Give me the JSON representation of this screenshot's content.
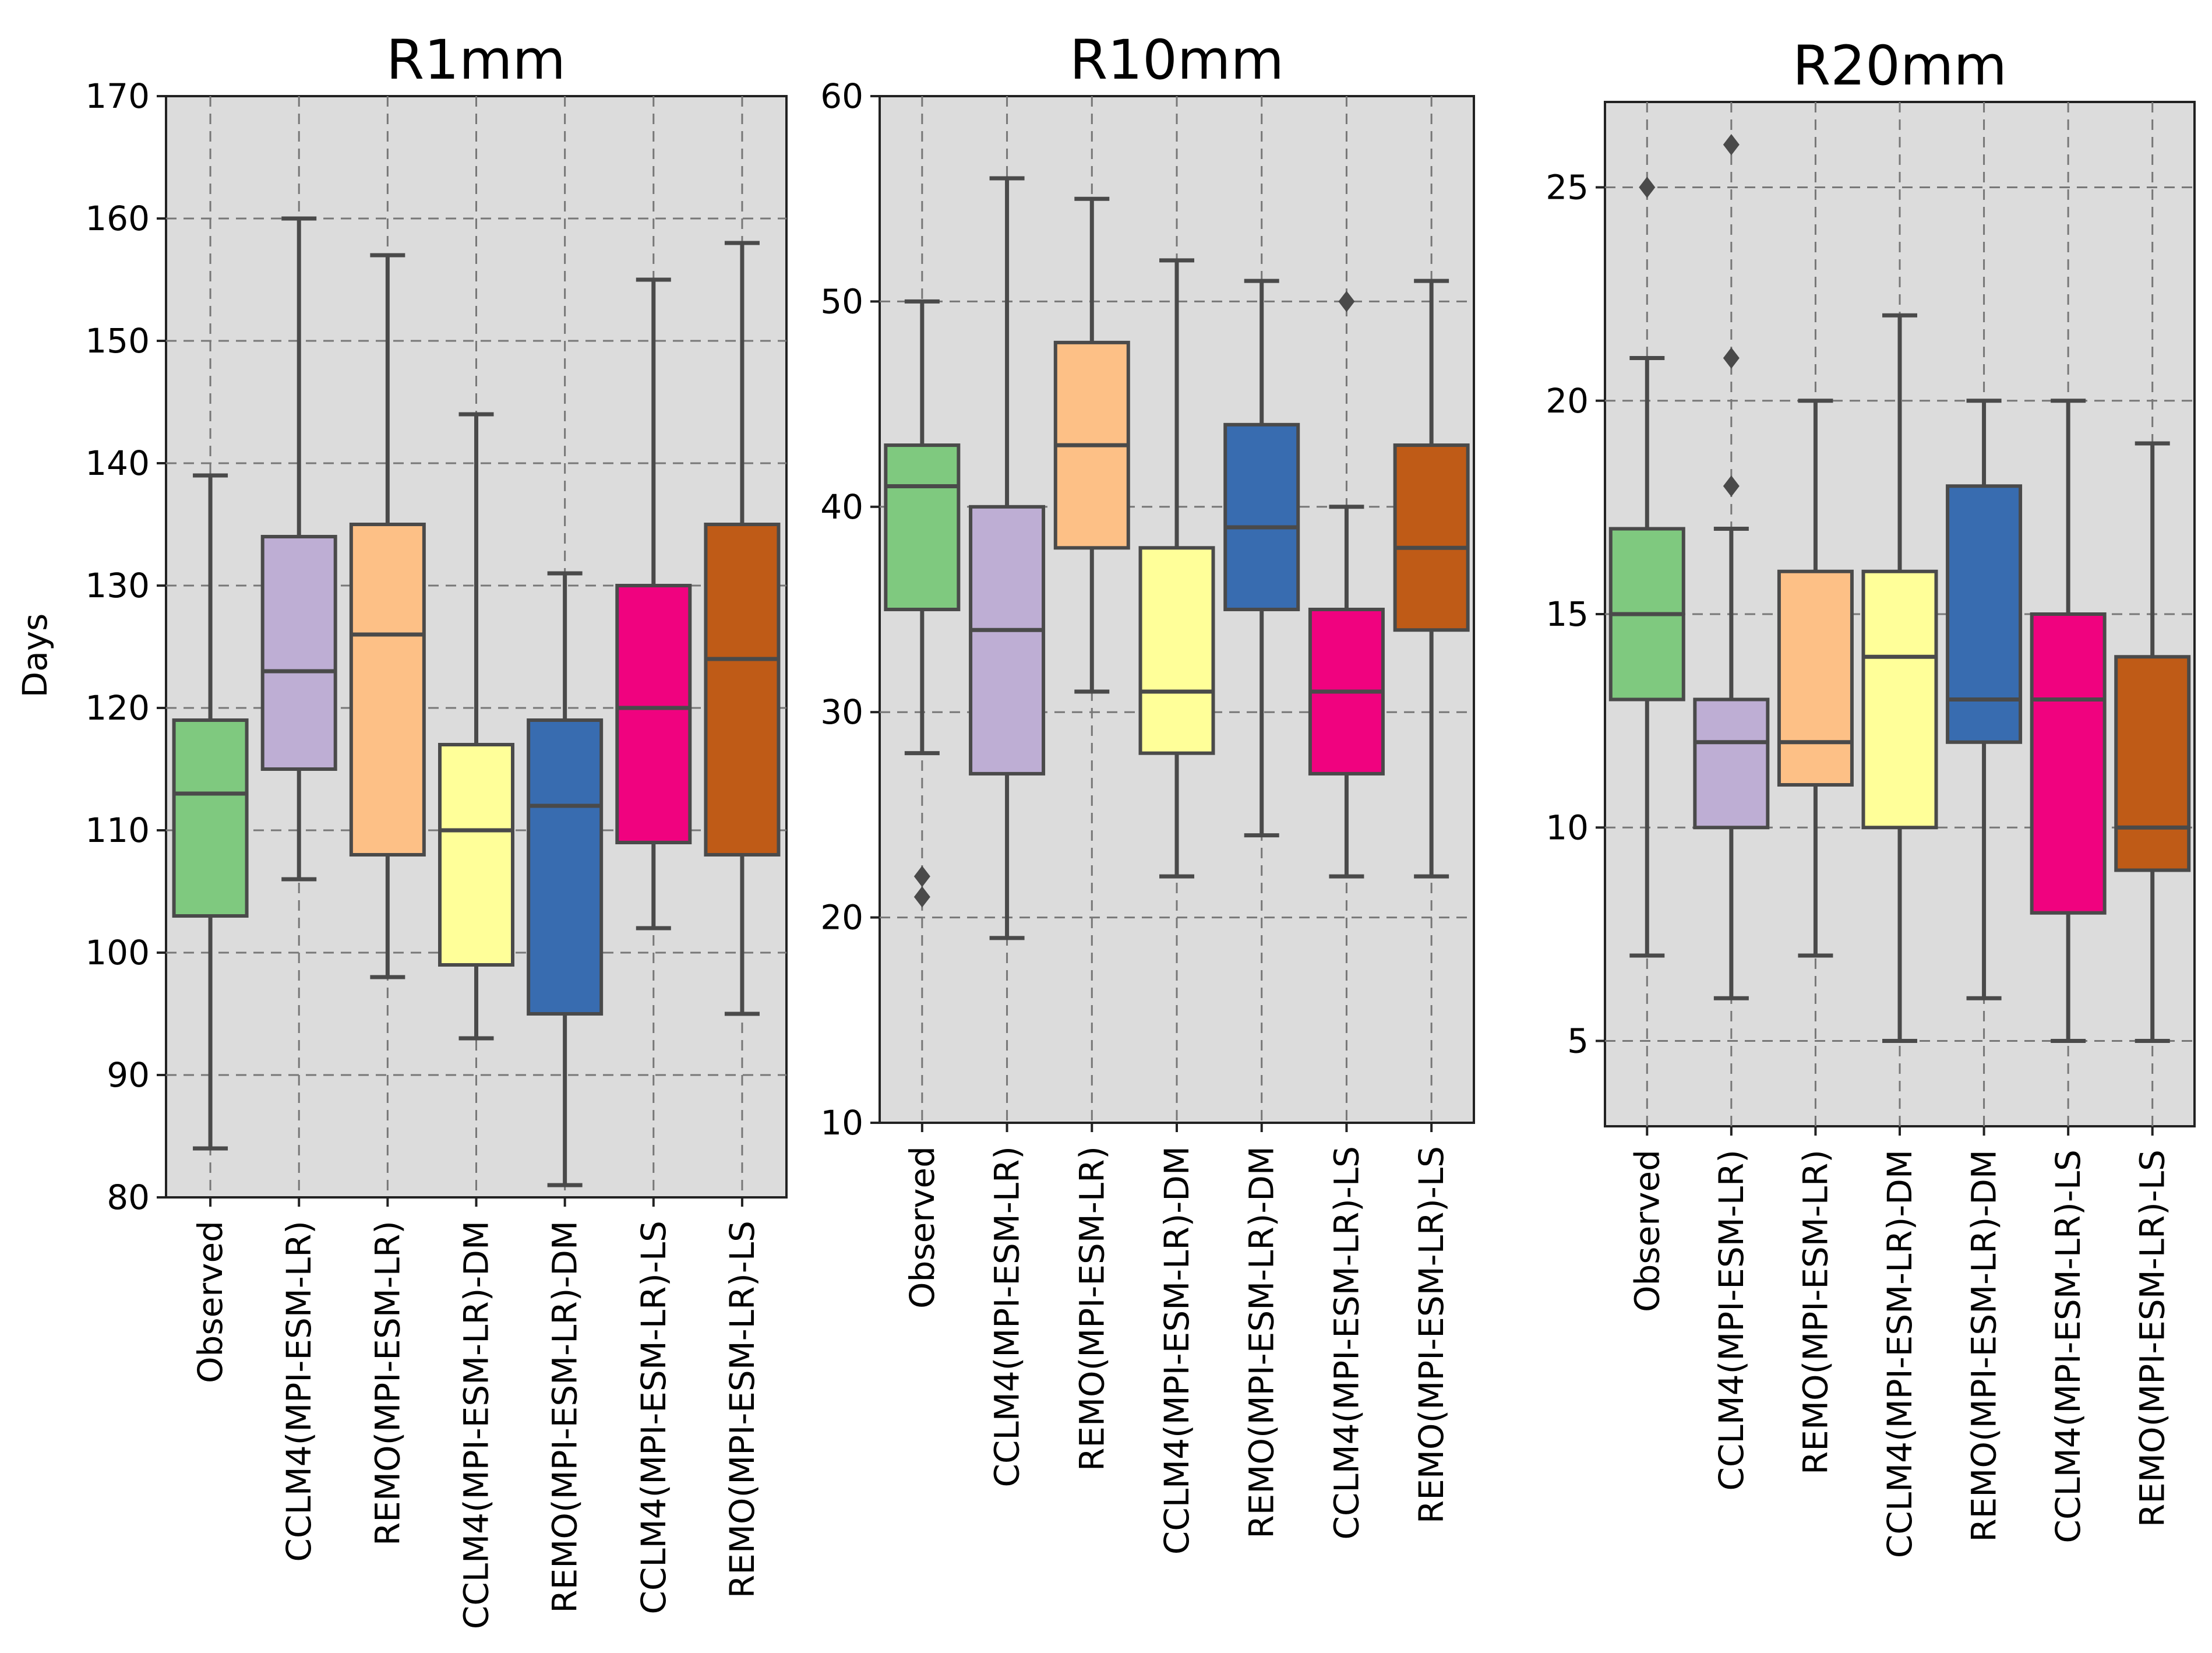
{
  "figure": {
    "ylabel_first_panel": "Days"
  },
  "palette": {
    "Observed": "#7fc97f",
    "CCLM4(MPI-ESM-LR)": "#beaed4",
    "REMO(MPI-ESM-LR)": "#fdc086",
    "CCLM4(MPI-ESM-LR)-DM": "#ffff99",
    "REMO(MPI-ESM-LR)-DM": "#386cb0",
    "CCLM4(MPI-ESM-LR)-LS": "#f0027f",
    "REMO(MPI-ESM-LR)-LS": "#bf5b17"
  },
  "chart_data": [
    {
      "type": "box",
      "title": "R1mm",
      "xlabel": "",
      "ylabel": "Days",
      "ylim": [
        80,
        170
      ],
      "yticks": [
        80,
        90,
        100,
        110,
        120,
        130,
        140,
        150,
        160,
        170
      ],
      "grid": true,
      "categories": [
        "Observed",
        "CCLM4(MPI-ESM-LR)",
        "REMO(MPI-ESM-LR)",
        "CCLM4(MPI-ESM-LR)-DM",
        "REMO(MPI-ESM-LR)-DM",
        "CCLM4(MPI-ESM-LR)-LS",
        "REMO(MPI-ESM-LR)-LS"
      ],
      "boxes": [
        {
          "min": 84,
          "q1": 103,
          "median": 113,
          "q3": 119,
          "max": 139,
          "outliers": []
        },
        {
          "min": 106,
          "q1": 115,
          "median": 123,
          "q3": 134,
          "max": 160,
          "outliers": []
        },
        {
          "min": 98,
          "q1": 108,
          "median": 126,
          "q3": 135,
          "max": 157,
          "outliers": []
        },
        {
          "min": 93,
          "q1": 99,
          "median": 110,
          "q3": 117,
          "max": 144,
          "outliers": []
        },
        {
          "min": 81,
          "q1": 95,
          "median": 112,
          "q3": 119,
          "max": 131,
          "outliers": []
        },
        {
          "min": 102,
          "q1": 109,
          "median": 120,
          "q3": 130,
          "max": 155,
          "outliers": []
        },
        {
          "min": 95,
          "q1": 108,
          "median": 124,
          "q3": 135,
          "max": 158,
          "outliers": []
        }
      ]
    },
    {
      "type": "box",
      "title": "R10mm",
      "xlabel": "",
      "ylabel": "",
      "ylim": [
        10,
        60
      ],
      "yticks": [
        10,
        20,
        30,
        40,
        50,
        60
      ],
      "grid": true,
      "categories": [
        "Observed",
        "CCLM4(MPI-ESM-LR)",
        "REMO(MPI-ESM-LR)",
        "CCLM4(MPI-ESM-LR)-DM",
        "REMO(MPI-ESM-LR)-DM",
        "CCLM4(MPI-ESM-LR)-LS",
        "REMO(MPI-ESM-LR)-LS"
      ],
      "boxes": [
        {
          "min": 28,
          "q1": 35,
          "median": 41,
          "q3": 43,
          "max": 50,
          "outliers": [
            22,
            21
          ]
        },
        {
          "min": 19,
          "q1": 27,
          "median": 34,
          "q3": 40,
          "max": 56,
          "outliers": []
        },
        {
          "min": 31,
          "q1": 38,
          "median": 43,
          "q3": 48,
          "max": 55,
          "outliers": []
        },
        {
          "min": 22,
          "q1": 28,
          "median": 31,
          "q3": 38,
          "max": 52,
          "outliers": []
        },
        {
          "min": 24,
          "q1": 35,
          "median": 39,
          "q3": 44,
          "max": 51,
          "outliers": []
        },
        {
          "min": 22,
          "q1": 27,
          "median": 31,
          "q3": 35,
          "max": 40,
          "outliers": [
            50
          ]
        },
        {
          "min": 22,
          "q1": 34,
          "median": 38,
          "q3": 43,
          "max": 51,
          "outliers": []
        }
      ]
    },
    {
      "type": "box",
      "title": "R20mm",
      "xlabel": "",
      "ylabel": "",
      "ylim": [
        3,
        27
      ],
      "yticks": [
        5,
        10,
        15,
        20,
        25
      ],
      "grid": true,
      "categories": [
        "Observed",
        "CCLM4(MPI-ESM-LR)",
        "REMO(MPI-ESM-LR)",
        "CCLM4(MPI-ESM-LR)-DM",
        "REMO(MPI-ESM-LR)-DM",
        "CCLM4(MPI-ESM-LR)-LS",
        "REMO(MPI-ESM-LR)-LS"
      ],
      "boxes": [
        {
          "min": 7,
          "q1": 13,
          "median": 15,
          "q3": 17,
          "max": 21,
          "outliers": [
            25
          ]
        },
        {
          "min": 6,
          "q1": 10,
          "median": 12,
          "q3": 13,
          "max": 17,
          "outliers": [
            18,
            21,
            26
          ]
        },
        {
          "min": 7,
          "q1": 11,
          "median": 12,
          "q3": 16,
          "max": 20,
          "outliers": []
        },
        {
          "min": 5,
          "q1": 10,
          "median": 14,
          "q3": 16,
          "max": 22,
          "outliers": []
        },
        {
          "min": 6,
          "q1": 12,
          "median": 13,
          "q3": 18,
          "max": 20,
          "outliers": []
        },
        {
          "min": 5,
          "q1": 8,
          "median": 13,
          "q3": 15,
          "max": 20,
          "outliers": []
        },
        {
          "min": 5,
          "q1": 9,
          "median": 10,
          "q3": 14,
          "max": 19,
          "outliers": []
        }
      ]
    }
  ]
}
